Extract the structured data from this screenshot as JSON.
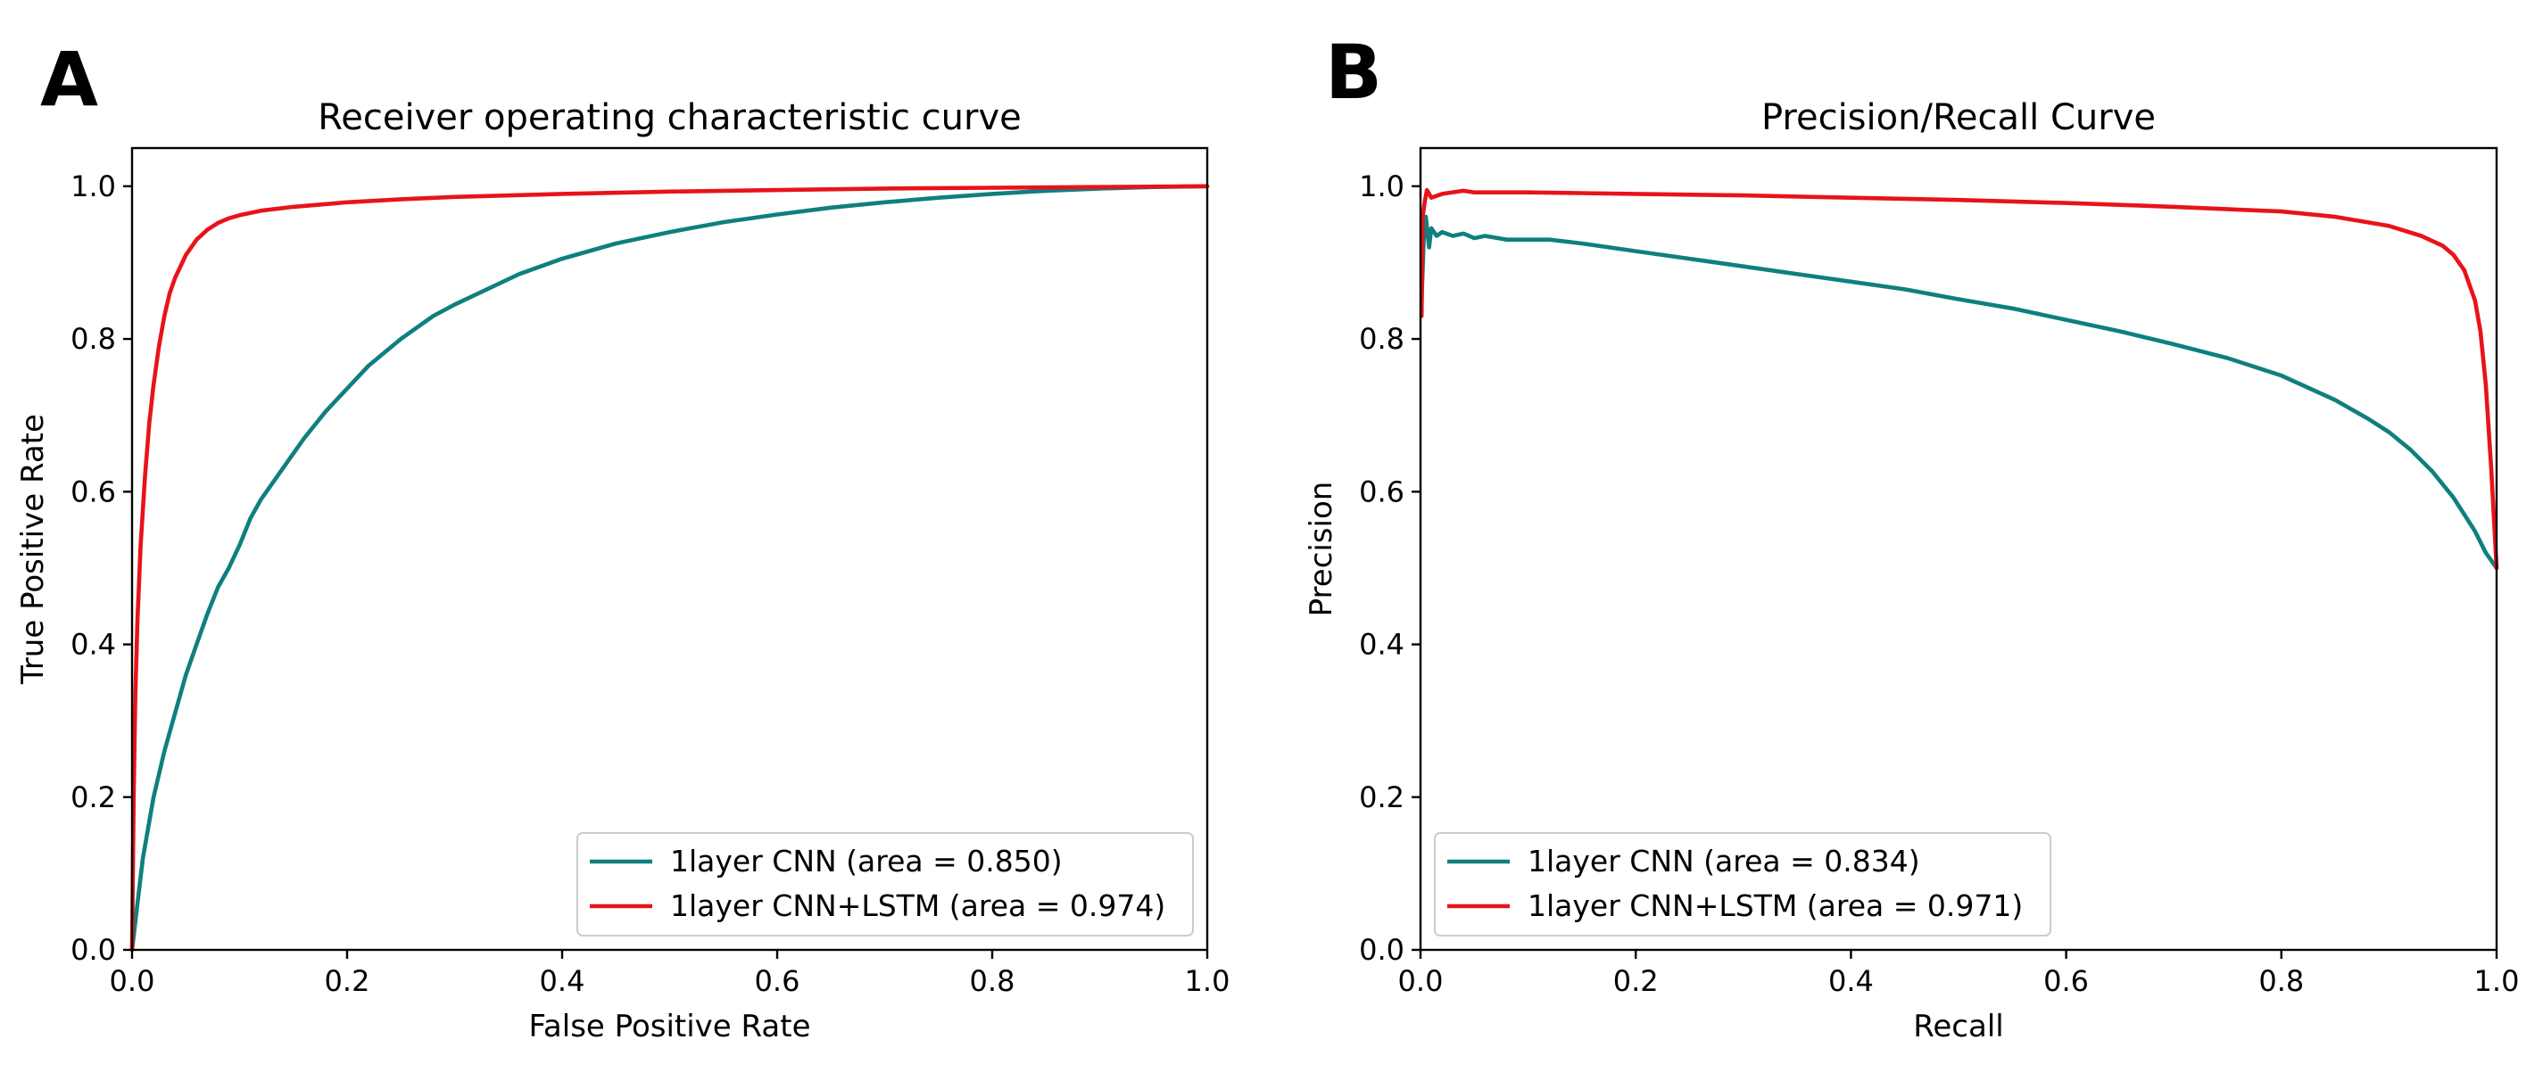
{
  "chart_data": [
    {
      "panel": "A",
      "type": "line",
      "title": "Receiver operating characteristic curve",
      "xlabel": "False Positive Rate",
      "ylabel": "True Positive Rate",
      "xlim": [
        0,
        1
      ],
      "ylim": [
        0,
        1.05
      ],
      "xticks": [
        "0.0",
        "0.2",
        "0.4",
        "0.6",
        "0.8",
        "1.0"
      ],
      "yticks": [
        "0.0",
        "0.2",
        "0.4",
        "0.6",
        "0.8",
        "1.0"
      ],
      "grid": false,
      "legend_position": "lower-right",
      "series": [
        {
          "name": "1layer CNN (area = 0.850)",
          "color": "#0f7f7f",
          "points": [
            [
              0,
              0
            ],
            [
              0.005,
              0.06
            ],
            [
              0.01,
              0.12
            ],
            [
              0.02,
              0.2
            ],
            [
              0.03,
              0.26
            ],
            [
              0.04,
              0.31
            ],
            [
              0.05,
              0.36
            ],
            [
              0.06,
              0.4
            ],
            [
              0.07,
              0.44
            ],
            [
              0.08,
              0.475
            ],
            [
              0.09,
              0.5
            ],
            [
              0.1,
              0.53
            ],
            [
              0.11,
              0.565
            ],
            [
              0.12,
              0.59
            ],
            [
              0.14,
              0.63
            ],
            [
              0.16,
              0.67
            ],
            [
              0.18,
              0.705
            ],
            [
              0.2,
              0.735
            ],
            [
              0.22,
              0.765
            ],
            [
              0.25,
              0.8
            ],
            [
              0.28,
              0.83
            ],
            [
              0.3,
              0.845
            ],
            [
              0.33,
              0.865
            ],
            [
              0.36,
              0.885
            ],
            [
              0.4,
              0.905
            ],
            [
              0.45,
              0.925
            ],
            [
              0.5,
              0.94
            ],
            [
              0.55,
              0.953
            ],
            [
              0.6,
              0.963
            ],
            [
              0.65,
              0.972
            ],
            [
              0.7,
              0.979
            ],
            [
              0.75,
              0.985
            ],
            [
              0.8,
              0.99
            ],
            [
              0.85,
              0.994
            ],
            [
              0.9,
              0.997
            ],
            [
              0.95,
              0.999
            ],
            [
              1.0,
              1.0
            ]
          ]
        },
        {
          "name": "1layer CNN+LSTM (area = 0.974)",
          "color": "#e8131a",
          "points": [
            [
              0,
              0
            ],
            [
              0.0015,
              0.2
            ],
            [
              0.003,
              0.33
            ],
            [
              0.005,
              0.43
            ],
            [
              0.008,
              0.53
            ],
            [
              0.012,
              0.62
            ],
            [
              0.016,
              0.69
            ],
            [
              0.02,
              0.74
            ],
            [
              0.025,
              0.79
            ],
            [
              0.03,
              0.83
            ],
            [
              0.035,
              0.86
            ],
            [
              0.04,
              0.88
            ],
            [
              0.05,
              0.91
            ],
            [
              0.06,
              0.93
            ],
            [
              0.07,
              0.943
            ],
            [
              0.08,
              0.952
            ],
            [
              0.09,
              0.958
            ],
            [
              0.1,
              0.962
            ],
            [
              0.12,
              0.968
            ],
            [
              0.15,
              0.973
            ],
            [
              0.2,
              0.979
            ],
            [
              0.25,
              0.983
            ],
            [
              0.3,
              0.986
            ],
            [
              0.4,
              0.99
            ],
            [
              0.5,
              0.993
            ],
            [
              0.6,
              0.995
            ],
            [
              0.7,
              0.997
            ],
            [
              0.8,
              0.998
            ],
            [
              0.9,
              0.999
            ],
            [
              1.0,
              1.0
            ]
          ]
        }
      ]
    },
    {
      "panel": "B",
      "type": "line",
      "title": "Precision/Recall Curve",
      "xlabel": "Recall",
      "ylabel": "Precision",
      "xlim": [
        0,
        1
      ],
      "ylim": [
        0,
        1.05
      ],
      "xticks": [
        "0.0",
        "0.2",
        "0.4",
        "0.6",
        "0.8",
        "1.0"
      ],
      "yticks": [
        "0.0",
        "0.2",
        "0.4",
        "0.6",
        "0.8",
        "1.0"
      ],
      "grid": false,
      "legend_position": "lower-left",
      "series": [
        {
          "name": "1layer CNN (area = 0.834)",
          "color": "#0f7f7f",
          "points": [
            [
              0.001,
              0.85
            ],
            [
              0.003,
              0.93
            ],
            [
              0.005,
              0.96
            ],
            [
              0.008,
              0.92
            ],
            [
              0.01,
              0.945
            ],
            [
              0.015,
              0.935
            ],
            [
              0.02,
              0.94
            ],
            [
              0.03,
              0.935
            ],
            [
              0.04,
              0.938
            ],
            [
              0.05,
              0.932
            ],
            [
              0.06,
              0.935
            ],
            [
              0.08,
              0.93
            ],
            [
              0.1,
              0.93
            ],
            [
              0.12,
              0.93
            ],
            [
              0.15,
              0.925
            ],
            [
              0.2,
              0.915
            ],
            [
              0.25,
              0.905
            ],
            [
              0.3,
              0.895
            ],
            [
              0.35,
              0.885
            ],
            [
              0.4,
              0.875
            ],
            [
              0.45,
              0.865
            ],
            [
              0.5,
              0.852
            ],
            [
              0.55,
              0.84
            ],
            [
              0.6,
              0.825
            ],
            [
              0.65,
              0.81
            ],
            [
              0.7,
              0.793
            ],
            [
              0.75,
              0.775
            ],
            [
              0.8,
              0.752
            ],
            [
              0.85,
              0.72
            ],
            [
              0.88,
              0.696
            ],
            [
              0.9,
              0.678
            ],
            [
              0.92,
              0.655
            ],
            [
              0.94,
              0.627
            ],
            [
              0.96,
              0.592
            ],
            [
              0.98,
              0.548
            ],
            [
              0.99,
              0.52
            ],
            [
              1.0,
              0.5
            ]
          ]
        },
        {
          "name": "1layer CNN+LSTM (area = 0.971)",
          "color": "#e8131a",
          "points": [
            [
              0.001,
              0.83
            ],
            [
              0.002,
              0.96
            ],
            [
              0.004,
              0.98
            ],
            [
              0.006,
              0.995
            ],
            [
              0.01,
              0.985
            ],
            [
              0.02,
              0.99
            ],
            [
              0.04,
              0.994
            ],
            [
              0.05,
              0.992
            ],
            [
              0.1,
              0.992
            ],
            [
              0.2,
              0.99
            ],
            [
              0.3,
              0.988
            ],
            [
              0.4,
              0.985
            ],
            [
              0.5,
              0.982
            ],
            [
              0.6,
              0.978
            ],
            [
              0.7,
              0.973
            ],
            [
              0.8,
              0.967
            ],
            [
              0.85,
              0.96
            ],
            [
              0.9,
              0.948
            ],
            [
              0.93,
              0.935
            ],
            [
              0.95,
              0.922
            ],
            [
              0.96,
              0.91
            ],
            [
              0.97,
              0.89
            ],
            [
              0.98,
              0.85
            ],
            [
              0.985,
              0.81
            ],
            [
              0.99,
              0.74
            ],
            [
              0.995,
              0.63
            ],
            [
              1.0,
              0.5
            ]
          ]
        }
      ]
    }
  ]
}
